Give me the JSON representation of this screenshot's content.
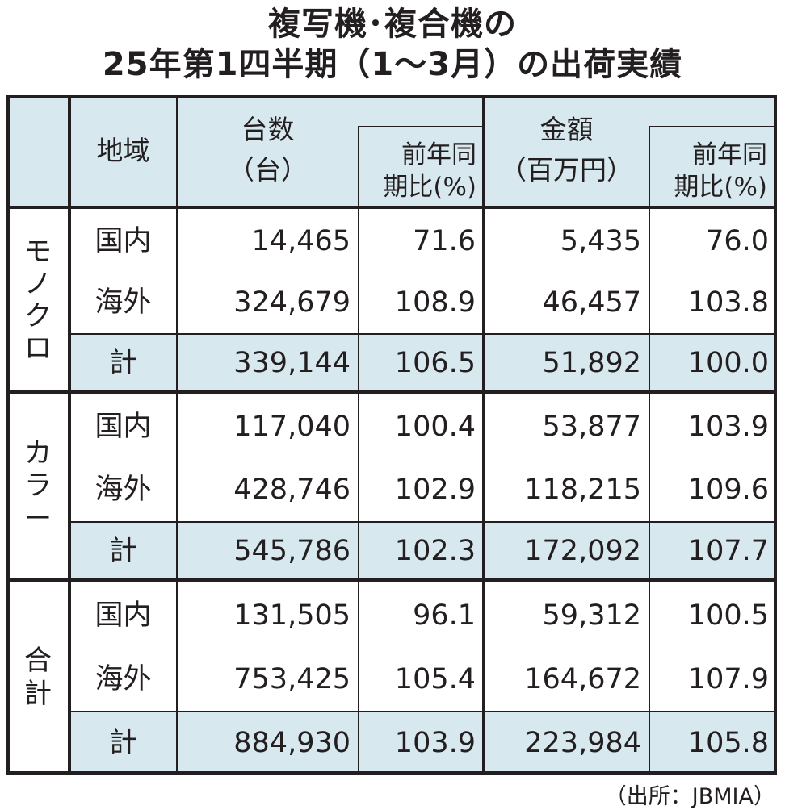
{
  "title": {
    "line1": "複写機･複合機の",
    "line2": "25年第1四半期（1〜3月）の出荷実績"
  },
  "header": {
    "region": "地域",
    "units_line1": "台数",
    "units_line2": "（台）",
    "units_yoy_line1": "前年同",
    "units_yoy_line2": "期比(%)",
    "amount_line1": "金額",
    "amount_line2": "（百万円）",
    "amount_yoy_line1": "前年同",
    "amount_yoy_line2": "期比(%)"
  },
  "groups": [
    {
      "label_chars": [
        "モ",
        "ノ",
        "ク",
        "ロ"
      ],
      "rows": [
        {
          "region": "国内",
          "units": "14,465",
          "units_yoy": "71.6",
          "amount": "5,435",
          "amount_yoy": "76.0"
        },
        {
          "region": "海外",
          "units": "324,679",
          "units_yoy": "108.9",
          "amount": "46,457",
          "amount_yoy": "103.8"
        },
        {
          "region": "計",
          "units": "339,144",
          "units_yoy": "106.5",
          "amount": "51,892",
          "amount_yoy": "100.0"
        }
      ]
    },
    {
      "label_chars": [
        "カ",
        "ラ",
        "ー"
      ],
      "rows": [
        {
          "region": "国内",
          "units": "117,040",
          "units_yoy": "100.4",
          "amount": "53,877",
          "amount_yoy": "103.9"
        },
        {
          "region": "海外",
          "units": "428,746",
          "units_yoy": "102.9",
          "amount": "118,215",
          "amount_yoy": "109.6"
        },
        {
          "region": "計",
          "units": "545,786",
          "units_yoy": "102.3",
          "amount": "172,092",
          "amount_yoy": "107.7"
        }
      ]
    },
    {
      "label_chars": [
        "合",
        "計"
      ],
      "rows": [
        {
          "region": "国内",
          "units": "131,505",
          "units_yoy": "96.1",
          "amount": "59,312",
          "amount_yoy": "100.5"
        },
        {
          "region": "海外",
          "units": "753,425",
          "units_yoy": "105.4",
          "amount": "164,672",
          "amount_yoy": "107.9"
        },
        {
          "region": "計",
          "units": "884,930",
          "units_yoy": "103.9",
          "amount": "223,984",
          "amount_yoy": "105.8"
        }
      ]
    }
  ],
  "source": "（出所：JBMIA）",
  "colors": {
    "header_fill": "#d7e8ef",
    "line": "#231f20"
  }
}
